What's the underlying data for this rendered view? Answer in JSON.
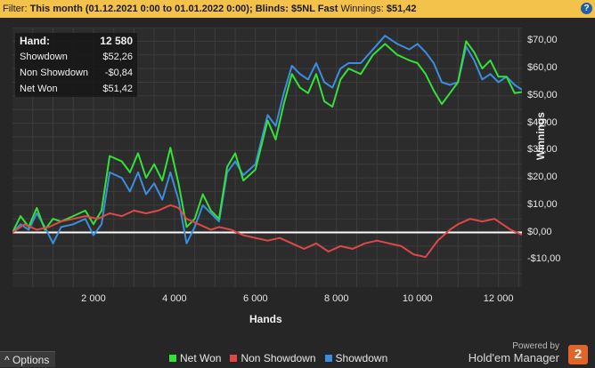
{
  "filter": {
    "prefix": "Filter:",
    "period": "This month (01.12.2021 0:00 to 01.01.2022 0:00);",
    "blinds": "Blinds: $5NL Fast",
    "winnings_label": "Winnings:",
    "winnings_value": "$51,42",
    "help_glyph": "?"
  },
  "stats": {
    "hand_label": "Hand:",
    "hand_value": "12 580",
    "showdown_label": "Showdown",
    "showdown_value": "$52,26",
    "nonshowdown_label": "Non Showdown",
    "nonshowdown_value": "-$0,84",
    "netwon_label": "Net Won",
    "netwon_value": "$51,42"
  },
  "options_label": "^ Options",
  "branding": {
    "powered_by": "Powered by",
    "product": "Hold'em Manager",
    "logo_glyph": "2"
  },
  "chart_data": {
    "type": "line",
    "xlabel": "Hands",
    "ylabel": "Winnings",
    "xlim": [
      0,
      12580
    ],
    "ylim": [
      -20,
      75
    ],
    "x_ticks": [
      2000,
      4000,
      6000,
      8000,
      10000,
      12000
    ],
    "x_tick_labels": [
      "2 000",
      "4 000",
      "6 000",
      "8 000",
      "10 000",
      "12 000"
    ],
    "y_ticks": [
      -10,
      0,
      10,
      20,
      30,
      40,
      50,
      60,
      70
    ],
    "y_tick_labels": [
      "-$10,00",
      "$0,00",
      "$10,00",
      "$20,00",
      "$30,00",
      "$40,00",
      "$50,00",
      "$60,00",
      "$70,00"
    ],
    "grid": true,
    "legend_position": "bottom",
    "zero_line_color": "#ffffff",
    "series": [
      {
        "name": "Net Won",
        "color": "#35e03a",
        "points": [
          [
            0,
            0
          ],
          [
            200,
            6
          ],
          [
            400,
            2
          ],
          [
            600,
            9
          ],
          [
            800,
            1
          ],
          [
            1000,
            5
          ],
          [
            1200,
            4
          ],
          [
            1500,
            6
          ],
          [
            1800,
            8
          ],
          [
            2000,
            3
          ],
          [
            2200,
            8
          ],
          [
            2400,
            28
          ],
          [
            2700,
            26
          ],
          [
            2900,
            22
          ],
          [
            3100,
            29
          ],
          [
            3300,
            20
          ],
          [
            3500,
            25
          ],
          [
            3700,
            19
          ],
          [
            3900,
            31
          ],
          [
            4100,
            18
          ],
          [
            4300,
            2
          ],
          [
            4500,
            5
          ],
          [
            4700,
            14
          ],
          [
            4900,
            8
          ],
          [
            5100,
            5
          ],
          [
            5300,
            24
          ],
          [
            5500,
            29
          ],
          [
            5700,
            19
          ],
          [
            6000,
            23
          ],
          [
            6300,
            41
          ],
          [
            6500,
            34
          ],
          [
            6700,
            47
          ],
          [
            6900,
            58
          ],
          [
            7100,
            53
          ],
          [
            7300,
            51
          ],
          [
            7500,
            58
          ],
          [
            7700,
            48
          ],
          [
            7900,
            46
          ],
          [
            8100,
            56
          ],
          [
            8300,
            60
          ],
          [
            8600,
            58
          ],
          [
            8900,
            65
          ],
          [
            9200,
            69
          ],
          [
            9500,
            65
          ],
          [
            9800,
            63
          ],
          [
            10000,
            62
          ],
          [
            10200,
            58
          ],
          [
            10400,
            52
          ],
          [
            10600,
            47
          ],
          [
            10800,
            51
          ],
          [
            11000,
            55
          ],
          [
            11200,
            70
          ],
          [
            11400,
            66
          ],
          [
            11600,
            60
          ],
          [
            11800,
            63
          ],
          [
            12000,
            57
          ],
          [
            12200,
            57
          ],
          [
            12400,
            51
          ],
          [
            12580,
            51.42
          ]
        ]
      },
      {
        "name": "Non Showdown",
        "color": "#e04848",
        "points": [
          [
            0,
            0
          ],
          [
            300,
            3
          ],
          [
            600,
            1
          ],
          [
            900,
            2
          ],
          [
            1200,
            4
          ],
          [
            1500,
            5
          ],
          [
            1800,
            6
          ],
          [
            2100,
            5
          ],
          [
            2400,
            7
          ],
          [
            2700,
            6
          ],
          [
            3000,
            8
          ],
          [
            3300,
            7
          ],
          [
            3600,
            8
          ],
          [
            3900,
            10
          ],
          [
            4100,
            9
          ],
          [
            4300,
            5
          ],
          [
            4600,
            3
          ],
          [
            4900,
            1
          ],
          [
            5100,
            2
          ],
          [
            5400,
            1
          ],
          [
            5700,
            -1
          ],
          [
            6000,
            -2
          ],
          [
            6300,
            -3
          ],
          [
            6600,
            -2
          ],
          [
            6900,
            -4
          ],
          [
            7200,
            -6
          ],
          [
            7500,
            -4
          ],
          [
            7800,
            -7
          ],
          [
            8100,
            -5
          ],
          [
            8400,
            -6
          ],
          [
            8700,
            -4
          ],
          [
            9000,
            -3
          ],
          [
            9300,
            -4
          ],
          [
            9600,
            -5
          ],
          [
            9900,
            -8
          ],
          [
            10200,
            -9
          ],
          [
            10500,
            -3
          ],
          [
            10800,
            1
          ],
          [
            11000,
            3
          ],
          [
            11300,
            5
          ],
          [
            11600,
            4
          ],
          [
            11900,
            5
          ],
          [
            12100,
            3
          ],
          [
            12300,
            1
          ],
          [
            12580,
            -0.84
          ]
        ]
      },
      {
        "name": "Showdown",
        "color": "#3a8ee0",
        "points": [
          [
            0,
            0
          ],
          [
            200,
            3
          ],
          [
            400,
            1
          ],
          [
            600,
            7
          ],
          [
            800,
            2
          ],
          [
            1000,
            -4
          ],
          [
            1200,
            2
          ],
          [
            1500,
            3
          ],
          [
            1800,
            5
          ],
          [
            2000,
            -1
          ],
          [
            2200,
            3
          ],
          [
            2400,
            22
          ],
          [
            2700,
            20
          ],
          [
            2900,
            15
          ],
          [
            3100,
            22
          ],
          [
            3300,
            14
          ],
          [
            3500,
            18
          ],
          [
            3700,
            12
          ],
          [
            3900,
            22
          ],
          [
            4100,
            12
          ],
          [
            4300,
            -4
          ],
          [
            4500,
            2
          ],
          [
            4700,
            10
          ],
          [
            4900,
            7
          ],
          [
            5100,
            4
          ],
          [
            5300,
            22
          ],
          [
            5500,
            26
          ],
          [
            5700,
            21
          ],
          [
            6000,
            25
          ],
          [
            6300,
            43
          ],
          [
            6500,
            39
          ],
          [
            6700,
            51
          ],
          [
            6900,
            61
          ],
          [
            7100,
            58
          ],
          [
            7300,
            56
          ],
          [
            7500,
            62
          ],
          [
            7700,
            55
          ],
          [
            7900,
            53
          ],
          [
            8100,
            60
          ],
          [
            8300,
            62
          ],
          [
            8600,
            62
          ],
          [
            8900,
            67
          ],
          [
            9200,
            72
          ],
          [
            9500,
            69
          ],
          [
            9800,
            67
          ],
          [
            10000,
            69
          ],
          [
            10200,
            66
          ],
          [
            10400,
            62
          ],
          [
            10600,
            55
          ],
          [
            10800,
            54
          ],
          [
            11000,
            55
          ],
          [
            11200,
            68
          ],
          [
            11400,
            63
          ],
          [
            11600,
            56
          ],
          [
            11800,
            58
          ],
          [
            12000,
            55
          ],
          [
            12200,
            57
          ],
          [
            12400,
            54
          ],
          [
            12580,
            52.26
          ]
        ]
      }
    ]
  }
}
